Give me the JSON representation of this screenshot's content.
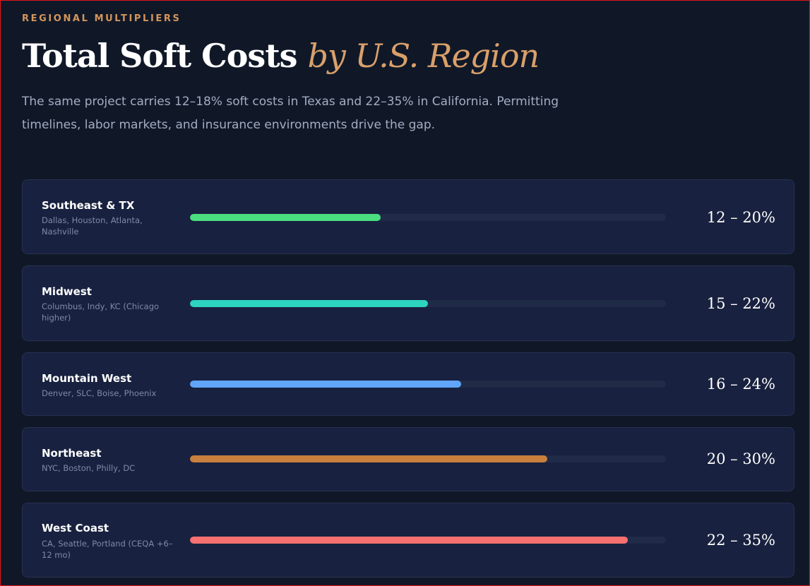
{
  "header": {
    "eyebrow": "REGIONAL MULTIPLIERS",
    "title_main": "Total Soft Costs ",
    "title_accent": "by U.S. Region",
    "subtitle": "The same project carries 12–18% soft costs in Texas and 22–35% in California. Permitting timelines, labor markets, and insurance environments drive the gap."
  },
  "regions": [
    {
      "name": "Southeast & TX",
      "cities": "Dallas, Houston, Atlanta, Nashville",
      "range": "12 – 20%",
      "bar_fill_fraction": 0.4,
      "color": "#4ade80"
    },
    {
      "name": "Midwest",
      "cities": "Columbus, Indy, KC (Chicago higher)",
      "range": "15 – 22%",
      "bar_fill_fraction": 0.5,
      "color": "#2dd4bf"
    },
    {
      "name": "Mountain West",
      "cities": "Denver, SLC, Boise, Phoenix",
      "range": "16 – 24%",
      "bar_fill_fraction": 0.57,
      "color": "#60a5fa"
    },
    {
      "name": "Northeast",
      "cities": "NYC, Boston, Philly, DC",
      "range": "20 – 30%",
      "bar_fill_fraction": 0.75,
      "color": "#c9803e"
    },
    {
      "name": "West Coast",
      "cities": "CA, Seattle, Portland (CEQA +6–12 mo)",
      "range": "22 – 35%",
      "bar_fill_fraction": 0.92,
      "color": "#f87171"
    }
  ],
  "colors": {
    "background": "#101828",
    "card": "#18213f",
    "accent": "#d9a06a",
    "track": "#202b48"
  }
}
